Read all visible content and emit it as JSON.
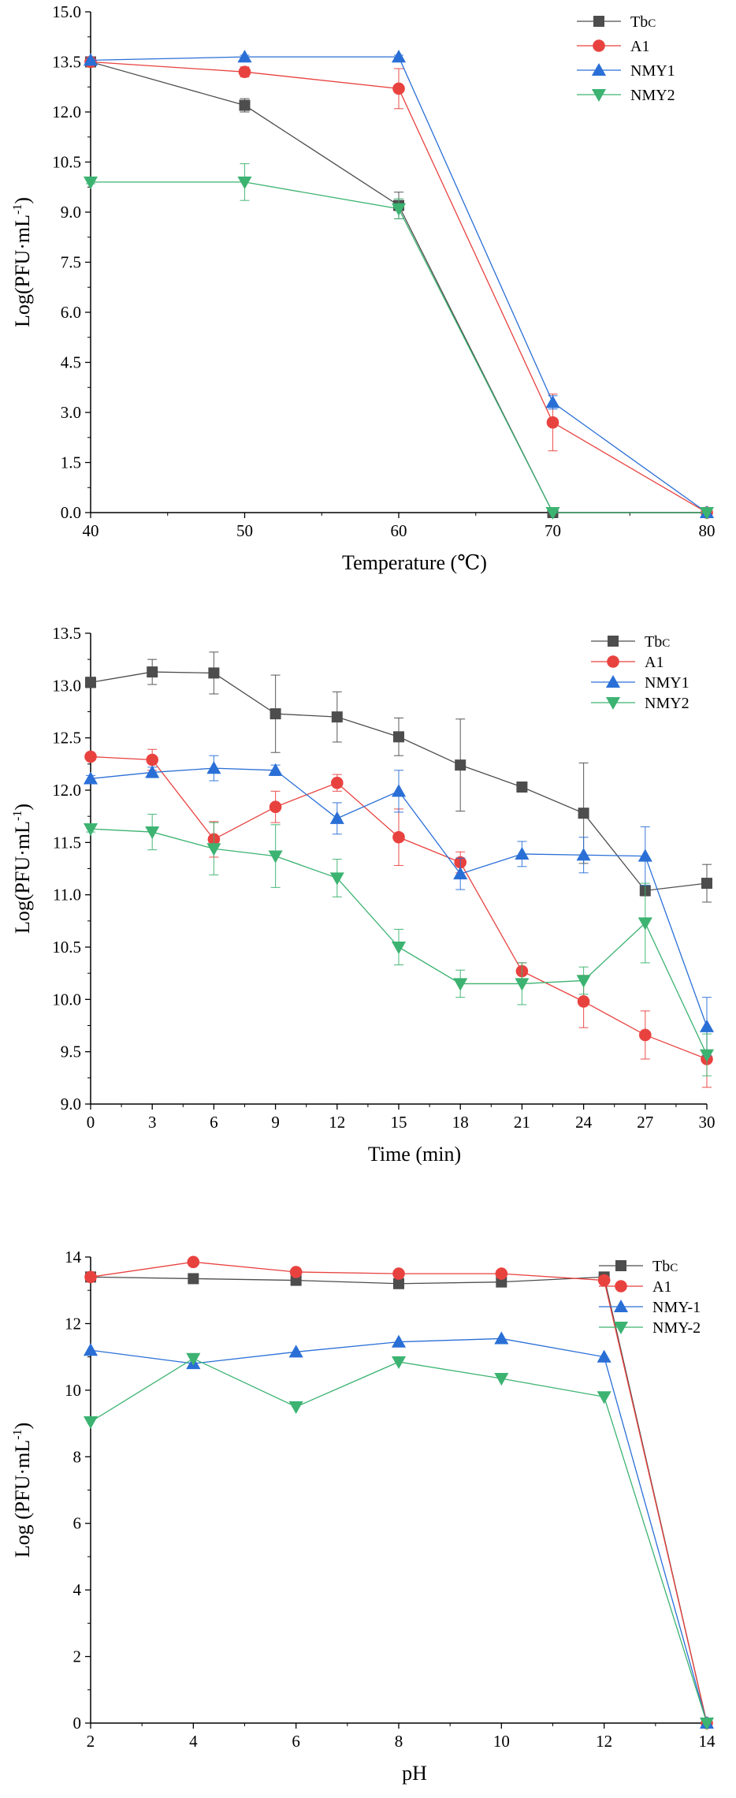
{
  "chart_data": [
    {
      "type": "line",
      "xlabel": "Temperature (℃)",
      "ylabel": "Log(PFU·mL",
      "ylabel_sup": "-1",
      "ylabel_close": ")",
      "xlim": [
        40,
        80
      ],
      "ylim": [
        0,
        15
      ],
      "xticks": [
        "40",
        "50",
        "60",
        "70",
        "80"
      ],
      "yticks": [
        "0.0",
        "1.5",
        "3.0",
        "4.5",
        "6.0",
        "7.5",
        "9.0",
        "10.5",
        "12.0",
        "13.5",
        "15.0"
      ],
      "series": [
        {
          "name": "Tbc",
          "name_main": "Tb",
          "name_sub": "C",
          "color": "#4d4d4d",
          "marker": "square",
          "x": [
            40,
            50,
            60,
            70,
            80
          ],
          "values": [
            13.5,
            12.2,
            9.2,
            0.0,
            0.0
          ],
          "errors": [
            0.15,
            0.2,
            0.4,
            0.0,
            0.0
          ]
        },
        {
          "name": "A1",
          "color": "#e8423f",
          "marker": "circle",
          "x": [
            40,
            50,
            60,
            70,
            80
          ],
          "values": [
            13.5,
            13.2,
            12.7,
            2.7,
            0.0
          ],
          "errors": [
            0.1,
            0.15,
            0.6,
            0.85,
            0.0
          ]
        },
        {
          "name": "NMY1",
          "color": "#2a6fd6",
          "marker": "triangle-up",
          "x": [
            40,
            50,
            60,
            70,
            80
          ],
          "values": [
            13.55,
            13.65,
            13.65,
            3.3,
            0.0
          ],
          "errors": [
            0.05,
            0.05,
            0.05,
            0.2,
            0.0
          ]
        },
        {
          "name": "NMY2",
          "color": "#3cb371",
          "marker": "triangle-down",
          "x": [
            40,
            50,
            60,
            70,
            80
          ],
          "values": [
            9.9,
            9.9,
            9.1,
            0.0,
            0.0
          ],
          "errors": [
            0.05,
            0.55,
            0.3,
            0.0,
            0.0
          ]
        }
      ]
    },
    {
      "type": "line",
      "xlabel": "Time (min)",
      "ylabel": "Log(PFU·mL",
      "ylabel_sup": "-1",
      "ylabel_close": ")",
      "xlim": [
        0,
        30
      ],
      "ylim": [
        9.0,
        13.5
      ],
      "xticks": [
        "0",
        "3",
        "6",
        "9",
        "12",
        "15",
        "18",
        "21",
        "24",
        "27",
        "30"
      ],
      "yticks": [
        "9.0",
        "9.5",
        "10.0",
        "10.5",
        "11.0",
        "11.5",
        "12.0",
        "12.5",
        "13.0",
        "13.5"
      ],
      "series": [
        {
          "name": "Tbc",
          "name_main": "Tb",
          "name_sub": "C",
          "color": "#4d4d4d",
          "marker": "square",
          "x": [
            0,
            3,
            6,
            9,
            12,
            15,
            18,
            21,
            24,
            27,
            30
          ],
          "values": [
            13.03,
            13.13,
            13.12,
            12.73,
            12.7,
            12.51,
            12.24,
            12.03,
            11.78,
            11.04,
            11.11
          ],
          "errors": [
            0.05,
            0.12,
            0.2,
            0.37,
            0.24,
            0.18,
            0.44,
            0.03,
            0.48,
            0.05,
            0.18
          ]
        },
        {
          "name": "A1",
          "color": "#e8423f",
          "marker": "circle",
          "x": [
            0,
            3,
            6,
            9,
            12,
            15,
            18,
            21,
            24,
            27,
            30
          ],
          "values": [
            12.32,
            12.29,
            11.53,
            11.84,
            12.07,
            11.55,
            11.31,
            10.27,
            9.98,
            9.66,
            9.43
          ],
          "errors": [
            0.03,
            0.1,
            0.17,
            0.15,
            0.08,
            0.27,
            0.1,
            0.08,
            0.25,
            0.23,
            0.27
          ]
        },
        {
          "name": "NMY1",
          "color": "#2a6fd6",
          "marker": "triangle-up",
          "x": [
            0,
            3,
            6,
            9,
            12,
            15,
            18,
            21,
            24,
            27,
            30
          ],
          "values": [
            12.11,
            12.17,
            12.21,
            12.19,
            11.73,
            11.99,
            11.2,
            11.39,
            11.38,
            11.37,
            9.74
          ],
          "errors": [
            0.03,
            0.05,
            0.12,
            0.05,
            0.15,
            0.2,
            0.15,
            0.12,
            0.17,
            0.28,
            0.28
          ]
        },
        {
          "name": "NMY2",
          "color": "#3cb371",
          "marker": "triangle-down",
          "x": [
            0,
            3,
            6,
            9,
            12,
            15,
            18,
            21,
            24,
            27,
            30
          ],
          "values": [
            11.63,
            11.6,
            11.44,
            11.37,
            11.16,
            10.5,
            10.15,
            10.15,
            10.18,
            10.73,
            9.47
          ],
          "errors": [
            0.03,
            0.17,
            0.25,
            0.3,
            0.18,
            0.17,
            0.13,
            0.2,
            0.13,
            0.38,
            0.2
          ]
        }
      ]
    },
    {
      "type": "line",
      "xlabel": "pH",
      "ylabel": "Log (PFU·mL",
      "ylabel_sup": "-1",
      "ylabel_close": ")",
      "xlim": [
        2,
        14
      ],
      "ylim": [
        0,
        14
      ],
      "xticks": [
        "2",
        "4",
        "6",
        "8",
        "10",
        "12",
        "14"
      ],
      "yticks": [
        "0",
        "2",
        "4",
        "6",
        "8",
        "10",
        "12",
        "14"
      ],
      "series": [
        {
          "name": "Tbc",
          "name_main": "Tb",
          "name_sub": "C",
          "color": "#4d4d4d",
          "marker": "square",
          "x": [
            2,
            4,
            6,
            8,
            10,
            12,
            14
          ],
          "values": [
            13.4,
            13.35,
            13.3,
            13.2,
            13.25,
            13.4,
            0.0
          ],
          "errors": [
            0,
            0,
            0,
            0,
            0,
            0,
            0
          ]
        },
        {
          "name": "A1",
          "color": "#e8423f",
          "marker": "circle",
          "x": [
            2,
            4,
            6,
            8,
            10,
            12,
            14
          ],
          "values": [
            13.4,
            13.85,
            13.55,
            13.5,
            13.5,
            13.3,
            0.0
          ],
          "errors": [
            0,
            0,
            0,
            0,
            0,
            0,
            0
          ]
        },
        {
          "name": "NMY-1",
          "color": "#2a6fd6",
          "marker": "triangle-up",
          "x": [
            2,
            4,
            6,
            8,
            10,
            12,
            14
          ],
          "values": [
            11.2,
            10.8,
            11.15,
            11.45,
            11.55,
            11.0,
            0.0
          ],
          "errors": [
            0,
            0,
            0,
            0,
            0,
            0,
            0
          ]
        },
        {
          "name": "NMY-2",
          "color": "#3cb371",
          "marker": "triangle-down",
          "x": [
            2,
            4,
            6,
            8,
            10,
            12,
            14
          ],
          "values": [
            9.05,
            10.95,
            9.5,
            10.85,
            10.35,
            9.8,
            0.0
          ],
          "errors": [
            0,
            0,
            0,
            0,
            0,
            0,
            0
          ]
        }
      ]
    }
  ]
}
